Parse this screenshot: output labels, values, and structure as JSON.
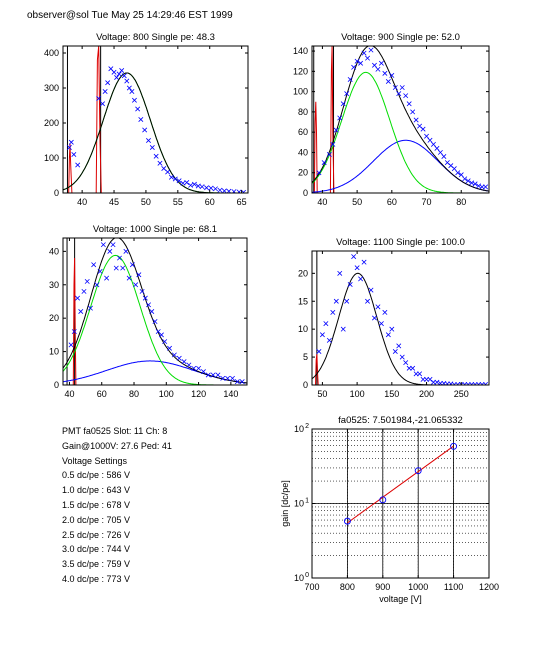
{
  "header": "observer@sol  Tue May 25 14:29:46 EST 1999",
  "info": {
    "pmt_line": "PMT fa0525 Slot: 11 Ch: 8",
    "gain_line": "Gain@1000V: 27.6  Ped: 41",
    "voltage_settings_title": "Voltage Settings",
    "voltage_settings": [
      "0.5 dc/pe : 586 V",
      "1.0 dc/pe : 643 V",
      "1.5 dc/pe : 678 V",
      "2.0 dc/pe : 705 V",
      "2.5 dc/pe : 726 V",
      "3.0 dc/pe : 744 V",
      "3.5 dc/pe : 759 V",
      "4.0 dc/pe : 773 V"
    ]
  },
  "colors": {
    "data": "#0000ff",
    "total": "#000000",
    "single_pe": "#00dd00",
    "double_pe": "#0000ff",
    "pedestal": "#dd0000",
    "fit_line": "#dd0000"
  },
  "chart_data": [
    {
      "type": "scatter",
      "title": "Voltage: 800 Single pe: 48.3",
      "xlim": [
        37,
        66
      ],
      "ylim": [
        0,
        420
      ],
      "xticks": [
        40,
        45,
        50,
        55,
        60,
        65
      ],
      "yticks": [
        0,
        100,
        200,
        300,
        400
      ],
      "pedestal_lines": [
        [
          37.7,
          0,
          37.7,
          420
        ],
        [
          42.9,
          0,
          42.9,
          420
        ]
      ],
      "pedestal_peaks": [
        {
          "x": [
            37.5,
            37.9,
            38.0,
            38.1,
            38.2,
            38.4,
            38.8
          ],
          "y": [
            0,
            0,
            100,
            140,
            80,
            0,
            0
          ]
        },
        {
          "x": [
            41.8,
            42.2,
            42.4,
            42.6,
            42.8,
            43.0,
            43.3
          ],
          "y": [
            0,
            0,
            380,
            420,
            150,
            0,
            0
          ]
        }
      ],
      "total_fit": {
        "mean": 47.0,
        "sigma": 3.7,
        "amp": 343
      },
      "single_pe_fit": {
        "mean": 47.0,
        "sigma": 3.7,
        "amp": 343
      },
      "points": {
        "x": [
          38.0,
          38.3,
          38.7,
          39.3,
          42.6,
          43.2,
          43.6,
          44.0,
          44.5,
          45.0,
          45.4,
          45.8,
          46.2,
          46.6,
          47.0,
          47.4,
          47.8,
          48.2,
          48.7,
          49.2,
          49.8,
          50.4,
          51.0,
          51.6,
          52.2,
          52.8,
          53.4,
          54.0,
          54.6,
          55.2,
          55.8,
          56.4,
          57.0,
          57.6,
          58.2,
          58.8,
          59.5,
          60.2,
          60.9,
          61.6,
          62.3,
          63.0,
          63.8,
          64.6,
          65.3
        ],
        "y": [
          130,
          145,
          110,
          80,
          270,
          255,
          290,
          315,
          355,
          345,
          330,
          340,
          350,
          335,
          320,
          300,
          290,
          265,
          240,
          210,
          180,
          150,
          130,
          105,
          85,
          70,
          60,
          45,
          40,
          35,
          28,
          30,
          22,
          25,
          20,
          18,
          15,
          14,
          12,
          8,
          6,
          5,
          4,
          3,
          2
        ]
      }
    },
    {
      "type": "scatter",
      "title": "Voltage: 900 Single pe: 52.0",
      "xlim": [
        37,
        88
      ],
      "ylim": [
        0,
        145
      ],
      "xticks": [
        40,
        50,
        60,
        70,
        80
      ],
      "yticks": [
        0,
        20,
        40,
        60,
        80,
        100,
        120,
        140
      ],
      "pedestal_lines": [
        [
          37.5,
          0,
          37.5,
          145
        ],
        [
          43.2,
          0,
          43.2,
          145
        ]
      ],
      "pedestal_peaks": [
        {
          "x": [
            37.3,
            37.7,
            37.9,
            38.1,
            38.3,
            38.5,
            38.9
          ],
          "y": [
            0,
            0,
            70,
            90,
            60,
            0,
            0
          ]
        },
        {
          "x": [
            41.9,
            42.3,
            42.6,
            42.8,
            43.0,
            43.3,
            43.6
          ],
          "y": [
            0,
            0,
            120,
            145,
            60,
            0,
            0
          ]
        }
      ],
      "total_fit": null,
      "single_pe_fit": {
        "mean": 52.5,
        "sigma": 6.9,
        "amp": 119
      },
      "double_pe_fit": {
        "mean": 64,
        "sigma": 9.3,
        "amp": 52
      },
      "points": {
        "x": [
          39.0,
          40.5,
          42.0,
          43.0,
          44.0,
          45.0,
          46.0,
          47.0,
          48.0,
          49.0,
          50.0,
          51.0,
          52.0,
          53.0,
          54.0,
          55.0,
          56.0,
          57.0,
          58.0,
          59.0,
          60.0,
          61.0,
          62.0,
          63.0,
          64.0,
          65.0,
          66.0,
          67.0,
          68.0,
          69.0,
          70.0,
          71.0,
          72.0,
          73.0,
          74.0,
          75.0,
          76.0,
          77.0,
          78.0,
          79.0,
          80.0,
          81.0,
          82.0,
          83.0,
          84.0,
          85.0,
          86.0,
          87.0
        ],
        "y": [
          20,
          30,
          38,
          48,
          62,
          74,
          88,
          98,
          112,
          124,
          130,
          128,
          138,
          133,
          141,
          126,
          122,
          128,
          118,
          110,
          116,
          104,
          98,
          104,
          96,
          88,
          80,
          72,
          66,
          63,
          56,
          52,
          48,
          44,
          40,
          36,
          30,
          27,
          24,
          20,
          18,
          14,
          12,
          10,
          9,
          7,
          6,
          6
        ]
      }
    },
    {
      "type": "scatter",
      "title": "Voltage: 1000 Single pe: 68.1",
      "xlim": [
        36,
        150
      ],
      "ylim": [
        0,
        44
      ],
      "xticks": [
        40,
        60,
        80,
        100,
        120,
        140
      ],
      "yticks": [
        0,
        10,
        20,
        30,
        40
      ],
      "pedestal_lines": [
        [
          38.5,
          0,
          38.5,
          44
        ],
        [
          43.2,
          0,
          43.2,
          44
        ]
      ],
      "pedestal_peaks": [
        {
          "x": [
            41.8,
            42.4,
            42.8,
            43.2,
            43.6,
            44.0,
            44.6
          ],
          "y": [
            0,
            0,
            30,
            38,
            14,
            0,
            0
          ]
        }
      ],
      "total_fit": null,
      "single_pe_fit": {
        "mean": 68.5,
        "sigma": 15.3,
        "amp": 38.8
      },
      "double_pe_fit": {
        "mean": 90,
        "sigma": 27,
        "amp": 7.2
      },
      "points": {
        "x": [
          41.0,
          43.0,
          45.0,
          47.0,
          49.0,
          51.0,
          53.0,
          55.0,
          57.0,
          59.0,
          61.0,
          63.0,
          65.0,
          67.0,
          69.0,
          71.0,
          73.0,
          75.0,
          77.0,
          79.0,
          81.0,
          83.0,
          85.0,
          87.0,
          89.0,
          91.0,
          93.0,
          95.0,
          97.0,
          99.0,
          102.0,
          105.0,
          108.0,
          111.0,
          114.0,
          117.0,
          120.0,
          123.0,
          126.0,
          129.0,
          132.0,
          135.0,
          138.0,
          141.0,
          144.0,
          147.0
        ],
        "y": [
          12,
          16,
          26,
          22,
          28,
          31,
          23,
          36,
          30,
          34,
          42,
          32,
          40,
          42,
          35,
          38,
          35,
          40,
          32,
          36,
          30,
          33,
          28,
          26,
          24,
          22,
          19,
          16,
          15,
          13,
          11,
          9,
          8,
          7,
          6,
          5,
          5,
          4,
          3,
          3,
          3,
          2,
          2,
          2,
          1,
          1
        ]
      }
    },
    {
      "type": "scatter",
      "title": "Voltage: 1100 Single pe: 100.0",
      "xlim": [
        35,
        290
      ],
      "ylim": [
        0,
        24
      ],
      "xticks": [
        50,
        100,
        150,
        200,
        250
      ],
      "yticks": [
        0,
        5,
        10,
        15,
        20
      ],
      "pedestal_lines": [
        [
          42.0,
          0,
          42.0,
          24
        ]
      ],
      "pedestal_peaks": [
        {
          "x": [
            38,
            40,
            41,
            42,
            43,
            44,
            46
          ],
          "y": [
            0,
            0,
            4.5,
            5.5,
            2,
            0,
            0
          ]
        }
      ],
      "total_fit": {
        "mean": 101,
        "sigma": 27.5,
        "amp": 20
      },
      "single_pe_fit": null,
      "points": {
        "x": [
          45,
          50,
          55,
          60,
          65,
          70,
          75,
          80,
          85,
          90,
          95,
          100,
          105,
          110,
          115,
          120,
          125,
          130,
          135,
          140,
          145,
          150,
          155,
          160,
          165,
          170,
          175,
          180,
          185,
          190,
          195,
          200,
          205,
          210,
          215,
          220,
          225,
          230,
          235,
          240,
          245,
          250,
          255,
          260,
          265,
          270,
          275,
          280,
          285
        ],
        "y": [
          6,
          9,
          11,
          8,
          13,
          15,
          20,
          10,
          15,
          18,
          23,
          21,
          19,
          22,
          15,
          17,
          12,
          14,
          11,
          13,
          9,
          10,
          6,
          7,
          5,
          4,
          3,
          3,
          2,
          2,
          1,
          1,
          1,
          0.5,
          0.5,
          0.3,
          0.3,
          0.2,
          0.2,
          0.1,
          0.1,
          0.1,
          0.1,
          0.1,
          0.1,
          0.1,
          0.1,
          0.1,
          0.1
        ]
      }
    },
    {
      "type": "line",
      "title": "fa0525: 7.501984,-21.065332",
      "xlabel": "voltage [V]",
      "ylabel": "gain [dc/pe]",
      "x_log": false,
      "y_log": true,
      "xlim": [
        700,
        1200
      ],
      "ylim": [
        1,
        100
      ],
      "xticks": [
        700,
        800,
        900,
        1000,
        1100,
        1200
      ],
      "yticks": [
        {
          "value": 1,
          "label": "10",
          "exp": "0"
        },
        {
          "value": 10,
          "label": "10",
          "exp": "1"
        },
        {
          "value": 100,
          "label": "10",
          "exp": "2"
        }
      ],
      "grid": true,
      "points": {
        "x": [
          800,
          900,
          1000,
          1100
        ],
        "y": [
          5.8,
          11.2,
          27.6,
          58.5
        ]
      },
      "fit": {
        "x": [
          800,
          1100
        ],
        "y": [
          5.5,
          59
        ]
      }
    }
  ]
}
